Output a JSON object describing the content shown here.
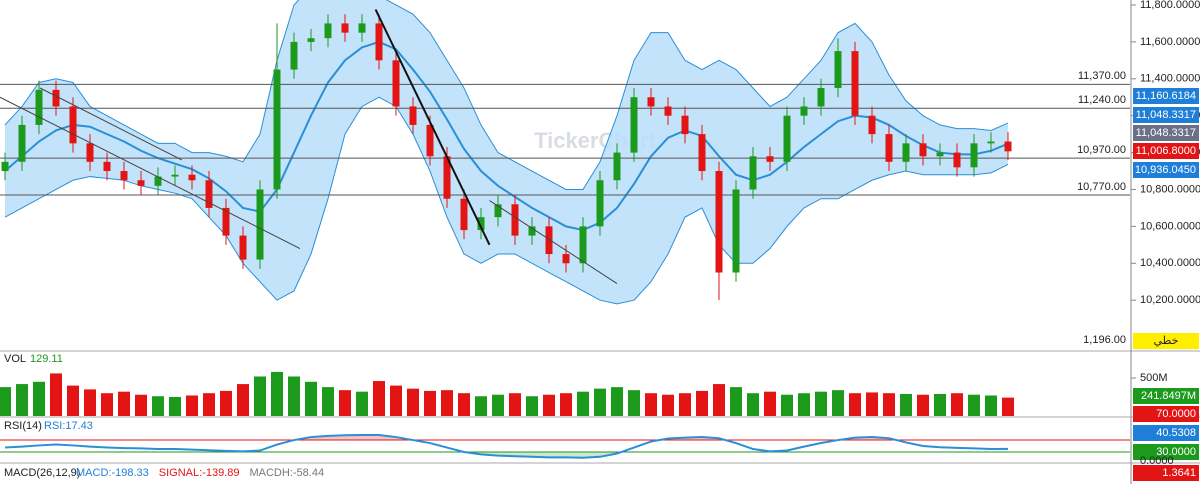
{
  "chart_data": {
    "type": "candlestick",
    "watermark": "TickerChart",
    "up_color": "#1c9a1c",
    "down_color": "#e31414",
    "ohlc": {
      "open": [
        10900,
        10950,
        11150,
        11340,
        11250,
        11050,
        10950,
        10900,
        10850,
        10820,
        10870,
        10880,
        10850,
        10700,
        10550,
        10420,
        10800,
        11450,
        11600,
        11620,
        11700,
        11650,
        11700,
        11500,
        11250,
        11150,
        10980,
        10750,
        10580,
        10650,
        10720,
        10550,
        10600,
        10450,
        10400,
        10600,
        10850,
        11000,
        11300,
        11250,
        11200,
        11100,
        10900,
        10350,
        10800,
        10980,
        10950,
        11200,
        11250,
        11350,
        11550,
        11200,
        11100,
        10950,
        11050,
        10980,
        11000,
        10920,
        11050,
        11060
      ],
      "high": [
        11000,
        11200,
        11390,
        11390,
        11300,
        11100,
        11000,
        10950,
        10900,
        10920,
        10930,
        10930,
        10900,
        10750,
        10600,
        10850,
        11700,
        11650,
        11670,
        11750,
        11750,
        11750,
        11750,
        11550,
        11300,
        11200,
        11030,
        10800,
        10700,
        10770,
        10770,
        10650,
        10650,
        10500,
        10650,
        10900,
        11050,
        11350,
        11350,
        11300,
        11250,
        11150,
        10950,
        10850,
        11030,
        11030,
        11250,
        11300,
        11400,
        11620,
        11600,
        11250,
        11150,
        11100,
        11100,
        11050,
        11050,
        11100,
        11110,
        11110
      ],
      "low": [
        10850,
        10900,
        11100,
        11200,
        11000,
        10900,
        10850,
        10800,
        10770,
        10770,
        10820,
        10800,
        10650,
        10500,
        10370,
        10370,
        10750,
        11400,
        11550,
        11570,
        11600,
        11600,
        11450,
        11200,
        11100,
        10930,
        10700,
        10530,
        10530,
        10600,
        10500,
        10500,
        10400,
        10350,
        10350,
        10550,
        10800,
        10950,
        11200,
        11150,
        11050,
        10850,
        10200,
        10300,
        10750,
        10900,
        10900,
        11150,
        11200,
        11300,
        11150,
        11050,
        10900,
        10900,
        10930,
        10930,
        10870,
        10870,
        11000,
        10960
      ],
      "close": [
        10950,
        11150,
        11340,
        11250,
        11050,
        10950,
        10900,
        10850,
        10820,
        10870,
        10880,
        10850,
        10700,
        10550,
        10420,
        10800,
        11450,
        11600,
        11620,
        11700,
        11650,
        11700,
        11500,
        11250,
        11150,
        10980,
        10750,
        10580,
        10650,
        10720,
        10550,
        10600,
        10450,
        10400,
        10600,
        10850,
        11000,
        11300,
        11250,
        11200,
        11100,
        10900,
        10350,
        10800,
        10980,
        10950,
        11200,
        11250,
        11350,
        11550,
        11200,
        11100,
        10950,
        11050,
        10980,
        11000,
        10920,
        11050,
        11060,
        11006.8
      ]
    },
    "bollinger": {
      "line_color": "#2a8fd6",
      "fill_color": "#b9defa",
      "upper": [
        11150,
        11250,
        11380,
        11400,
        11380,
        11250,
        11200,
        11150,
        11100,
        11050,
        11050,
        11000,
        11000,
        10980,
        10950,
        11100,
        11500,
        11800,
        11900,
        11900,
        11880,
        11850,
        11850,
        11800,
        11750,
        11650,
        11500,
        11350,
        11150,
        11000,
        10950,
        10900,
        10850,
        10800,
        10800,
        10950,
        11200,
        11500,
        11650,
        11650,
        11500,
        11450,
        11500,
        11450,
        11350,
        11250,
        11300,
        11400,
        11500,
        11650,
        11700,
        11600,
        11420,
        11280,
        11200,
        11150,
        11130,
        11130,
        11120,
        11160
      ],
      "middle": [
        10900,
        10980,
        11060,
        11120,
        11150,
        11140,
        11100,
        11060,
        11010,
        10970,
        10940,
        10910,
        10860,
        10790,
        10700,
        10680,
        10800,
        11000,
        11200,
        11380,
        11500,
        11570,
        11600,
        11560,
        11450,
        11330,
        11180,
        11020,
        10900,
        10820,
        10760,
        10700,
        10650,
        10600,
        10580,
        10620,
        10700,
        10830,
        10980,
        11080,
        11120,
        11090,
        10980,
        10880,
        10850,
        10880,
        10950,
        11030,
        11100,
        11170,
        11200,
        11190,
        11150,
        11090,
        11040,
        11000,
        10990,
        10990,
        11010,
        11048
      ],
      "lower": [
        10650,
        10700,
        10750,
        10800,
        10850,
        10870,
        10860,
        10850,
        10820,
        10800,
        10780,
        10750,
        10650,
        10550,
        10400,
        10300,
        10200,
        10250,
        10450,
        10750,
        11100,
        11250,
        11300,
        11250,
        11100,
        10900,
        10650,
        10450,
        10400,
        10450,
        10450,
        10400,
        10350,
        10300,
        10250,
        10200,
        10180,
        10200,
        10300,
        10450,
        10650,
        10700,
        10500,
        10400,
        10400,
        10480,
        10600,
        10700,
        10750,
        10750,
        10800,
        10850,
        10880,
        10900,
        10880,
        10880,
        10880,
        10880,
        10890,
        10936
      ]
    },
    "ylim": [
      9930,
      11827
    ],
    "yticks": [
      {
        "value": 10200,
        "label": "10,200.0000"
      },
      {
        "value": 10400,
        "label": "10,400.0000"
      },
      {
        "value": 10600,
        "label": "10,600.0000"
      },
      {
        "value": 10800,
        "label": "10,800.0000"
      },
      {
        "value": 11000,
        "label": "11,000.0000"
      },
      {
        "value": 11200,
        "label": "11,200.0000"
      },
      {
        "value": 11400,
        "label": "11,400.0000"
      },
      {
        "value": 11600,
        "label": "11,600.0000"
      },
      {
        "value": 11800,
        "label": "11,800.0000"
      }
    ],
    "levels": [
      {
        "value": 11370,
        "label": "11,370.00"
      },
      {
        "value": 11240,
        "label": "11,240.00"
      },
      {
        "value": 10970,
        "label": "10,970.00"
      },
      {
        "value": 10770,
        "label": "10,770.00"
      }
    ],
    "extra_level": {
      "value": 1196,
      "label": "1,196.00"
    },
    "trendlines": [
      {
        "color": "#444",
        "width": 1,
        "points": [
          [
            -0.3,
            11300
          ],
          [
            17.35,
            10480
          ]
        ]
      },
      {
        "color": "#444",
        "width": 1,
        "points": [
          [
            2.06,
            11350
          ],
          [
            10.4,
            10960
          ]
        ]
      },
      {
        "color": "#111",
        "width": 2,
        "points": [
          [
            21.8,
            11775
          ],
          [
            28.5,
            10500
          ]
        ]
      },
      {
        "color": "#444",
        "width": 1,
        "points": [
          [
            28.5,
            10740
          ],
          [
            36,
            10290
          ]
        ]
      }
    ],
    "badges": [
      {
        "value": 11160.6184,
        "label": "11,160.6184",
        "color": "#1f7fd8"
      },
      {
        "value": 11048.3317,
        "label": "11,048.3317",
        "color": "#1f7fd8"
      },
      {
        "value": 11048.3317,
        "label": "11,048.3317",
        "color": "#6c6f88"
      },
      {
        "value": 11006.8,
        "label": "11,006.8000",
        "color": "#e31414"
      },
      {
        "value": 10936.045,
        "label": "10,936.0450",
        "color": "#1f7fd8"
      }
    ],
    "mode_label": "خطي",
    "volume": {
      "label": "VOL",
      "reading": "129.11",
      "values": [
        380,
        420,
        450,
        560,
        400,
        350,
        300,
        320,
        280,
        260,
        250,
        270,
        300,
        330,
        420,
        520,
        580,
        520,
        450,
        380,
        340,
        320,
        460,
        400,
        360,
        330,
        340,
        300,
        260,
        280,
        300,
        260,
        280,
        300,
        320,
        360,
        380,
        340,
        300,
        280,
        300,
        330,
        420,
        380,
        300,
        320,
        280,
        300,
        320,
        340,
        300,
        310,
        300,
        290,
        280,
        290,
        300,
        280,
        270,
        242
      ],
      "ylim": [
        0,
        842
      ],
      "yticks": [
        {
          "value": 500,
          "label": "500M"
        }
      ],
      "badge": {
        "value": 241.8497,
        "label": "241.8497M",
        "color": "#1c9a1c"
      }
    },
    "rsi": {
      "label": "RSI(14)",
      "reading": "RSI:17.43",
      "color": "#2a8fd6",
      "values": [
        45,
        48,
        52,
        55,
        52,
        48,
        45,
        43,
        42,
        40,
        40,
        38,
        36,
        34,
        32,
        35,
        55,
        70,
        80,
        84,
        86,
        87,
        87,
        80,
        70,
        60,
        45,
        30,
        22,
        18,
        16,
        14,
        12,
        12,
        11,
        14,
        25,
        45,
        65,
        75,
        78,
        80,
        76,
        60,
        40,
        32,
        35,
        48,
        60,
        70,
        78,
        80,
        76,
        62,
        50,
        46,
        44,
        42,
        40,
        40.53
      ],
      "ylim": [
        0,
        137
      ],
      "levels": [
        {
          "value": 70,
          "label": "70.0000",
          "color": "#e31414"
        },
        {
          "value": 30,
          "label": "30.0000",
          "color": "#1c9a1c"
        }
      ],
      "yticks": [
        {
          "value": 0,
          "label": "0.0000"
        }
      ],
      "badge": {
        "value": 40.5308,
        "label": "40.5308",
        "color": "#1f7fd8"
      }
    },
    "macd": {
      "label": "MACD(26,12,9)",
      "readings": [
        {
          "text": "MACD:-198.33",
          "color": "#1f7fd8"
        },
        {
          "text": "SIGNAL:-139.89",
          "color": "#e31414"
        },
        {
          "text": "MACDH:-58.44",
          "color": "#777"
        }
      ],
      "badge": {
        "value": 1.3641,
        "label": "1.3641",
        "color": "#e31414"
      }
    }
  }
}
